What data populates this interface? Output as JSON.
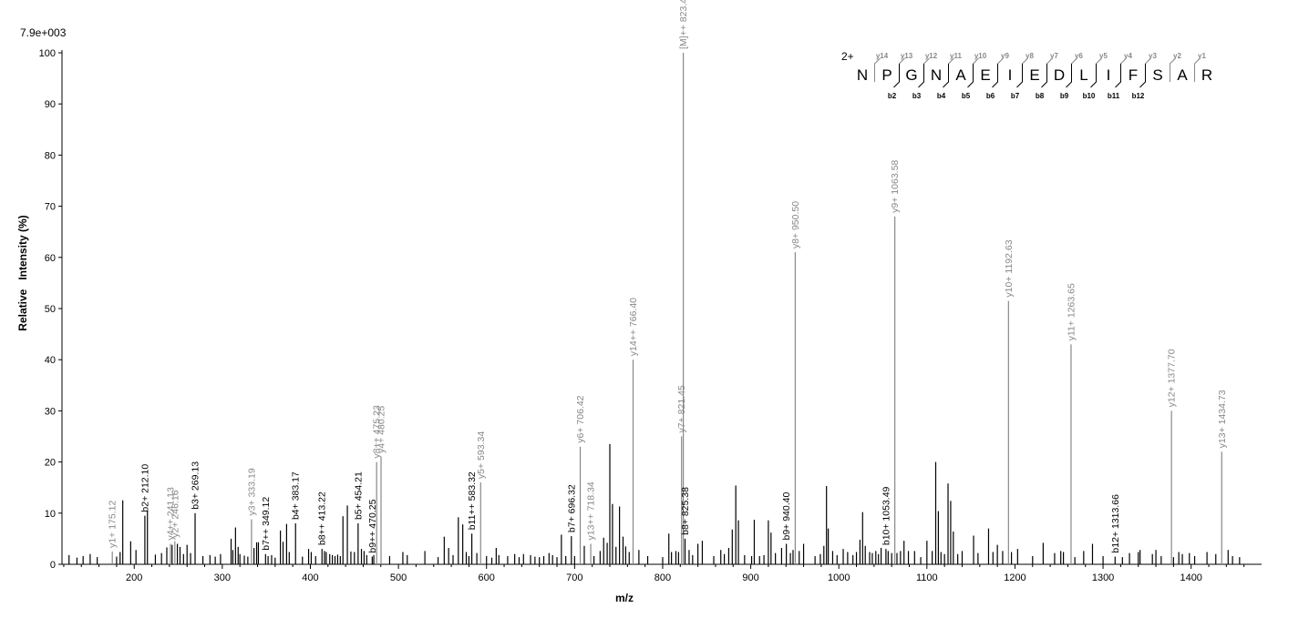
{
  "chart_data": {
    "type": "bar",
    "xlabel": "m/z",
    "ylabel": "Relative   Intensity (%)",
    "scale_label": "7.9e+003",
    "xlim": [
      118,
      1480
    ],
    "ylim": [
      0,
      100
    ],
    "x_ticks": [
      200,
      300,
      400,
      500,
      600,
      700,
      800,
      900,
      1000,
      1100,
      1200,
      1300,
      1400
    ],
    "y_ticks": [
      0,
      10,
      20,
      30,
      40,
      50,
      60,
      70,
      80,
      90,
      100
    ],
    "colors": {
      "labeled_b": "#000000",
      "labeled_y": "#888888",
      "peaks": "#000000"
    },
    "annotated_peaks": [
      {
        "mz": 175.12,
        "intensity": 2.5,
        "label": "y1+ 175.12",
        "ion": "y"
      },
      {
        "mz": 212.1,
        "intensity": 9.5,
        "label": "b2+ 212.10",
        "ion": "b"
      },
      {
        "mz": 241.13,
        "intensity": 4.0,
        "label": "y4++ 241.13",
        "ion": "y"
      },
      {
        "mz": 246.16,
        "intensity": 4.5,
        "label": "y2+ 246.16",
        "ion": "y"
      },
      {
        "mz": 269.13,
        "intensity": 10.0,
        "label": "b3+ 269.13",
        "ion": "b"
      },
      {
        "mz": 333.19,
        "intensity": 8.8,
        "label": "y3+ 333.19",
        "ion": "y"
      },
      {
        "mz": 349.12,
        "intensity": 2.0,
        "label": "b7++ 349.12",
        "ion": "b"
      },
      {
        "mz": 383.17,
        "intensity": 8.0,
        "label": "b4+ 383.17",
        "ion": "b"
      },
      {
        "mz": 413.22,
        "intensity": 3.0,
        "label": "b8++ 413.22",
        "ion": "b"
      },
      {
        "mz": 454.21,
        "intensity": 8.0,
        "label": "b5+ 454.21",
        "ion": "b"
      },
      {
        "mz": 470.25,
        "intensity": 1.5,
        "label": "b9++ 470.25",
        "ion": "b"
      },
      {
        "mz": 475.23,
        "intensity": 20.0,
        "label": "y8++ 475.23",
        "ion": "y"
      },
      {
        "mz": 480.25,
        "intensity": 21.0,
        "label": "y4+ 480.25",
        "ion": "y"
      },
      {
        "mz": 583.32,
        "intensity": 6.0,
        "label": "b11++ 583.32",
        "ion": "b"
      },
      {
        "mz": 593.34,
        "intensity": 16.0,
        "label": "y5+ 593.34",
        "ion": "y"
      },
      {
        "mz": 696.32,
        "intensity": 5.5,
        "label": "b7+ 696.32",
        "ion": "b"
      },
      {
        "mz": 706.42,
        "intensity": 23.0,
        "label": "y6+ 706.42",
        "ion": "y"
      },
      {
        "mz": 718.34,
        "intensity": 4.0,
        "label": "y13++ 718.34",
        "ion": "y"
      },
      {
        "mz": 766.4,
        "intensity": 40.0,
        "label": "y14++ 766.40",
        "ion": "y"
      },
      {
        "mz": 821.45,
        "intensity": 25.0,
        "label": "y7+ 821.45",
        "ion": "y"
      },
      {
        "mz": 823.42,
        "intensity": 100.0,
        "label": "[M]++ 823.42",
        "ion": "y"
      },
      {
        "mz": 825.38,
        "intensity": 5.0,
        "label": "b8+ 825.38",
        "ion": "b"
      },
      {
        "mz": 940.4,
        "intensity": 4.0,
        "label": "b9+ 940.40",
        "ion": "b"
      },
      {
        "mz": 950.5,
        "intensity": 61.0,
        "label": "y8+ 950.50",
        "ion": "y"
      },
      {
        "mz": 1053.49,
        "intensity": 3.0,
        "label": "b10+ 1053.49",
        "ion": "b"
      },
      {
        "mz": 1063.58,
        "intensity": 68.0,
        "label": "y9+ 1063.58",
        "ion": "y"
      },
      {
        "mz": 1192.63,
        "intensity": 51.5,
        "label": "y10+ 1192.63",
        "ion": "y"
      },
      {
        "mz": 1263.65,
        "intensity": 43.0,
        "label": "y11+ 1263.65",
        "ion": "y"
      },
      {
        "mz": 1313.66,
        "intensity": 1.5,
        "label": "b12+ 1313.66",
        "ion": "b"
      },
      {
        "mz": 1377.7,
        "intensity": 30.0,
        "label": "y12+ 1377.70",
        "ion": "y"
      },
      {
        "mz": 1434.73,
        "intensity": 22.0,
        "label": "y13+ 1434.73",
        "ion": "y"
      }
    ],
    "peaks": [
      [
        126,
        1.8
      ],
      [
        135,
        1.3
      ],
      [
        142,
        1.6
      ],
      [
        150,
        2.0
      ],
      [
        158,
        1.4
      ],
      [
        180,
        1.5
      ],
      [
        184,
        2.4
      ],
      [
        187,
        12.5
      ],
      [
        196,
        4.5
      ],
      [
        202,
        2.8
      ],
      [
        215,
        10.5
      ],
      [
        224,
        1.9
      ],
      [
        231,
        2.2
      ],
      [
        237,
        3.3
      ],
      [
        243,
        3.8
      ],
      [
        249,
        4.0
      ],
      [
        252,
        3.4
      ],
      [
        256,
        2.0
      ],
      [
        260,
        3.8
      ],
      [
        264,
        2.2
      ],
      [
        278,
        1.6
      ],
      [
        286,
        1.8
      ],
      [
        292,
        1.5
      ],
      [
        298,
        2.0
      ],
      [
        310,
        5.0
      ],
      [
        312,
        2.8
      ],
      [
        315,
        7.2
      ],
      [
        318,
        3.4
      ],
      [
        320,
        2.0
      ],
      [
        325,
        1.7
      ],
      [
        329,
        1.5
      ],
      [
        336,
        3.2
      ],
      [
        339,
        4.3
      ],
      [
        341,
        4.3
      ],
      [
        352,
        1.6
      ],
      [
        356,
        1.8
      ],
      [
        360,
        1.3
      ],
      [
        366,
        6.6
      ],
      [
        369,
        4.4
      ],
      [
        373,
        7.9
      ],
      [
        376,
        2.4
      ],
      [
        391,
        1.5
      ],
      [
        398,
        3.0
      ],
      [
        401,
        2.4
      ],
      [
        406,
        1.6
      ],
      [
        416,
        2.6
      ],
      [
        418,
        2.4
      ],
      [
        422,
        2.0
      ],
      [
        425,
        1.8
      ],
      [
        428,
        1.6
      ],
      [
        431,
        1.9
      ],
      [
        434,
        1.6
      ],
      [
        437,
        9.4
      ],
      [
        442,
        11.5
      ],
      [
        446,
        2.5
      ],
      [
        450,
        2.4
      ],
      [
        458,
        3.0
      ],
      [
        461,
        2.6
      ],
      [
        464,
        1.8
      ],
      [
        472,
        1.8
      ],
      [
        490,
        1.6
      ],
      [
        505,
        2.4
      ],
      [
        510,
        1.8
      ],
      [
        530,
        2.6
      ],
      [
        545,
        1.4
      ],
      [
        552,
        5.4
      ],
      [
        557,
        3.2
      ],
      [
        562,
        1.8
      ],
      [
        568,
        9.2
      ],
      [
        573,
        7.8
      ],
      [
        577,
        2.4
      ],
      [
        580,
        1.6
      ],
      [
        589,
        2.2
      ],
      [
        600,
        1.6
      ],
      [
        606,
        1.3
      ],
      [
        611,
        3.2
      ],
      [
        614,
        1.8
      ],
      [
        624,
        1.6
      ],
      [
        632,
        2.0
      ],
      [
        637,
        1.4
      ],
      [
        642,
        2.0
      ],
      [
        650,
        1.8
      ],
      [
        655,
        1.5
      ],
      [
        660,
        1.4
      ],
      [
        665,
        1.6
      ],
      [
        671,
        2.2
      ],
      [
        675,
        1.8
      ],
      [
        680,
        1.4
      ],
      [
        685,
        5.8
      ],
      [
        690,
        1.6
      ],
      [
        700,
        1.6
      ],
      [
        711,
        3.6
      ],
      [
        722,
        1.6
      ],
      [
        729,
        2.6
      ],
      [
        733,
        5.2
      ],
      [
        737,
        4.2
      ],
      [
        740,
        23.5
      ],
      [
        743,
        11.8
      ],
      [
        747,
        3.4
      ],
      [
        751,
        11.3
      ],
      [
        755,
        5.4
      ],
      [
        758,
        3.5
      ],
      [
        762,
        2.4
      ],
      [
        773,
        2.8
      ],
      [
        783,
        1.6
      ],
      [
        800,
        1.4
      ],
      [
        807,
        6.0
      ],
      [
        810,
        2.4
      ],
      [
        815,
        2.6
      ],
      [
        818,
        2.4
      ],
      [
        830,
        2.8
      ],
      [
        834,
        1.8
      ],
      [
        840,
        4.0
      ],
      [
        845,
        4.6
      ],
      [
        858,
        1.6
      ],
      [
        866,
        2.8
      ],
      [
        870,
        2.0
      ],
      [
        875,
        3.2
      ],
      [
        879,
        6.8
      ],
      [
        883,
        15.4
      ],
      [
        886,
        8.6
      ],
      [
        893,
        1.8
      ],
      [
        901,
        1.6
      ],
      [
        904,
        8.7
      ],
      [
        910,
        1.6
      ],
      [
        915,
        1.8
      ],
      [
        920,
        8.6
      ],
      [
        923,
        6.2
      ],
      [
        928,
        2.2
      ],
      [
        935,
        3.2
      ],
      [
        945,
        2.2
      ],
      [
        948,
        2.8
      ],
      [
        955,
        2.6
      ],
      [
        960,
        4.0
      ],
      [
        973,
        1.6
      ],
      [
        979,
        2.0
      ],
      [
        983,
        3.6
      ],
      [
        986,
        15.3
      ],
      [
        988,
        7.0
      ],
      [
        993,
        2.6
      ],
      [
        998,
        1.8
      ],
      [
        1005,
        3.0
      ],
      [
        1010,
        2.4
      ],
      [
        1016,
        1.8
      ],
      [
        1020,
        2.4
      ],
      [
        1024,
        4.8
      ],
      [
        1027,
        10.2
      ],
      [
        1030,
        3.6
      ],
      [
        1035,
        2.4
      ],
      [
        1038,
        2.2
      ],
      [
        1042,
        2.6
      ],
      [
        1045,
        2.0
      ],
      [
        1048,
        3.2
      ],
      [
        1056,
        2.6
      ],
      [
        1060,
        2.2
      ],
      [
        1066,
        2.2
      ],
      [
        1070,
        2.6
      ],
      [
        1074,
        4.6
      ],
      [
        1079,
        2.6
      ],
      [
        1086,
        2.6
      ],
      [
        1093,
        1.4
      ],
      [
        1100,
        4.6
      ],
      [
        1106,
        2.6
      ],
      [
        1110,
        20.0
      ],
      [
        1113,
        10.4
      ],
      [
        1116,
        2.4
      ],
      [
        1120,
        2.0
      ],
      [
        1124,
        15.8
      ],
      [
        1127,
        12.4
      ],
      [
        1130,
        6.4
      ],
      [
        1135,
        2.0
      ],
      [
        1140,
        2.6
      ],
      [
        1153,
        5.6
      ],
      [
        1158,
        2.2
      ],
      [
        1170,
        7.0
      ],
      [
        1175,
        2.4
      ],
      [
        1180,
        3.8
      ],
      [
        1186,
        2.6
      ],
      [
        1196,
        2.4
      ],
      [
        1203,
        3.0
      ],
      [
        1220,
        1.6
      ],
      [
        1232,
        4.2
      ],
      [
        1245,
        2.2
      ],
      [
        1252,
        2.6
      ],
      [
        1255,
        2.4
      ],
      [
        1268,
        1.4
      ],
      [
        1278,
        2.6
      ],
      [
        1288,
        4.0
      ],
      [
        1300,
        1.6
      ],
      [
        1322,
        1.4
      ],
      [
        1330,
        2.2
      ],
      [
        1340,
        2.4
      ],
      [
        1342,
        2.8
      ],
      [
        1356,
        2.0
      ],
      [
        1360,
        2.8
      ],
      [
        1366,
        1.6
      ],
      [
        1380,
        1.4
      ],
      [
        1386,
        2.4
      ],
      [
        1390,
        2.0
      ],
      [
        1398,
        2.2
      ],
      [
        1404,
        1.6
      ],
      [
        1418,
        2.4
      ],
      [
        1428,
        2.0
      ],
      [
        1442,
        2.8
      ],
      [
        1447,
        1.6
      ],
      [
        1455,
        1.4
      ]
    ],
    "sequence": {
      "charge": "2+",
      "residues": [
        "N",
        "P",
        "G",
        "N",
        "A",
        "E",
        "I",
        "E",
        "D",
        "L",
        "I",
        "F",
        "S",
        "A",
        "R"
      ],
      "y_ions": [
        "y14",
        "y13",
        "y12",
        "y11",
        "y10",
        "y9",
        "y8",
        "y7",
        "y6",
        "y5",
        "y4",
        "y3",
        "y2",
        "y1"
      ],
      "b_ions": [
        "b2",
        "b3",
        "b4",
        "b5",
        "b6",
        "b7",
        "b8",
        "b9",
        "b10",
        "b11",
        "b12"
      ]
    }
  }
}
